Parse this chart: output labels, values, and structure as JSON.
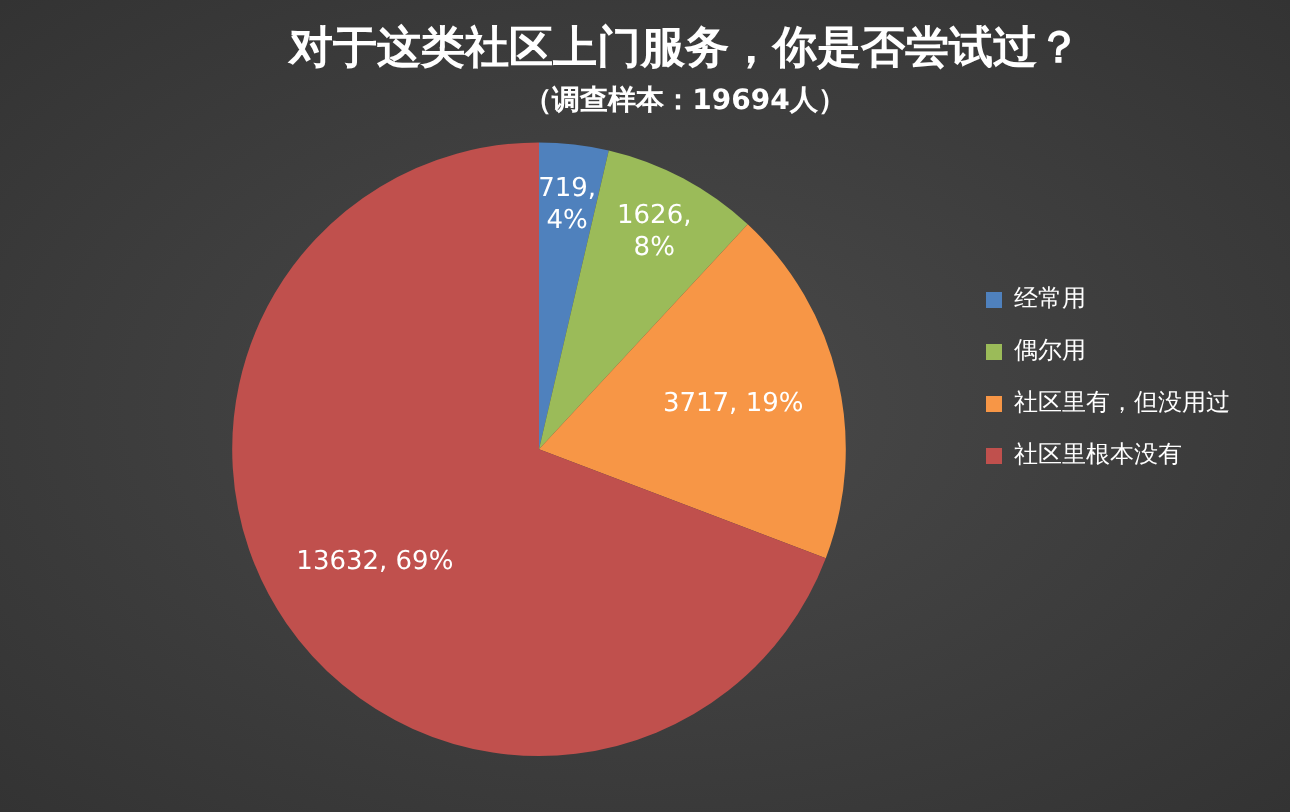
{
  "chart_data": {
    "type": "pie",
    "title": "对于这类社区上门服务，你是否尝试过？",
    "subtitle": "（调查样本：19694人）",
    "categories": [
      "经常用",
      "偶尔用",
      "社区里有，但没用过",
      "社区里根本没有"
    ],
    "values": [
      719,
      1626,
      3717,
      13632
    ],
    "colors": [
      "#4f81bd",
      "#9bbb59",
      "#f79646",
      "#c0504d"
    ],
    "value_labels": [
      "719, 4%",
      "1626, 8%",
      "3717, 19%",
      "13632, 69%"
    ],
    "legend": "right"
  }
}
